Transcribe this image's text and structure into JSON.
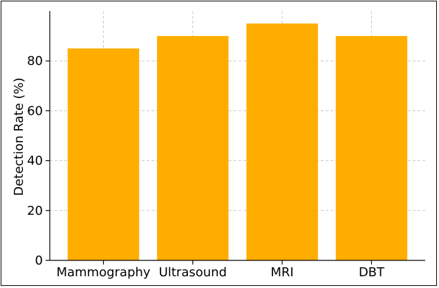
{
  "chart_data": {
    "type": "bar",
    "title": "",
    "xlabel": "",
    "ylabel": "Detection Rate (%)",
    "categories": [
      "Mammography",
      "Ultrasound",
      "MRI",
      "DBT"
    ],
    "values": [
      85,
      90,
      95,
      90
    ],
    "ylim": [
      0,
      100
    ],
    "yticks": [
      0,
      20,
      40,
      60,
      80
    ],
    "grid": true,
    "legend": "none",
    "colors": {
      "bar": "#FFAE00",
      "grid": "#c8c8c8",
      "axis": "#000000"
    }
  }
}
